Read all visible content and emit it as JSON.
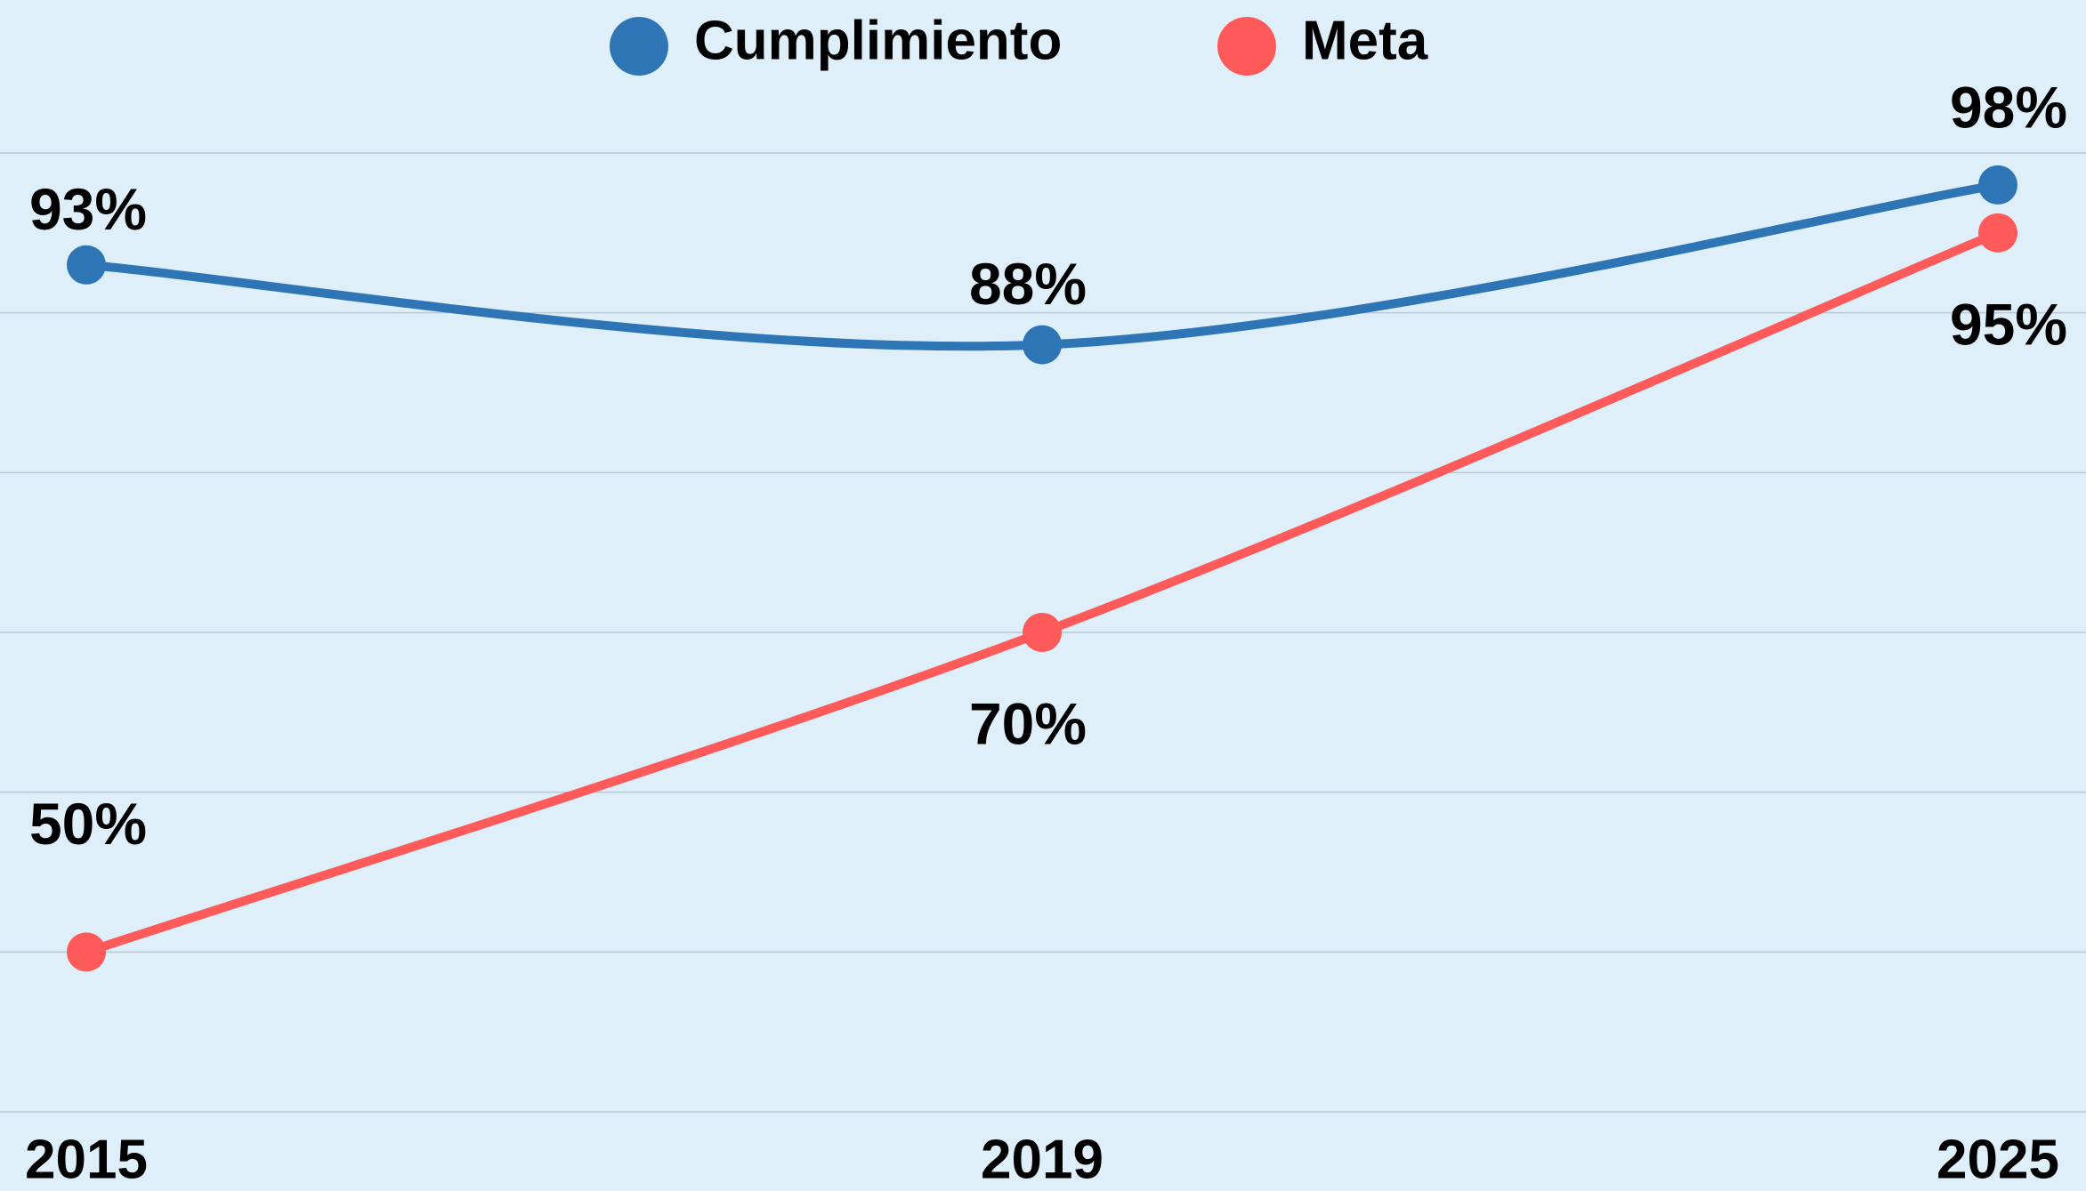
{
  "chart_data": {
    "type": "line",
    "categories": [
      "2015",
      "2019",
      "2025"
    ],
    "series": [
      {
        "name": "Cumplimiento",
        "color": "#2e75b6",
        "values": [
          93,
          88,
          98
        ],
        "value_labels": [
          "93%",
          "88%",
          "98%"
        ]
      },
      {
        "name": "Meta",
        "color": "#ff5a5a",
        "values": [
          50,
          70,
          95
        ],
        "value_labels": [
          "50%",
          "70%",
          "95%"
        ]
      }
    ],
    "ylim": [
      40,
      100
    ],
    "yticks": [
      40,
      50,
      60,
      70,
      80,
      90,
      100
    ],
    "grid": true,
    "legend": "top"
  }
}
